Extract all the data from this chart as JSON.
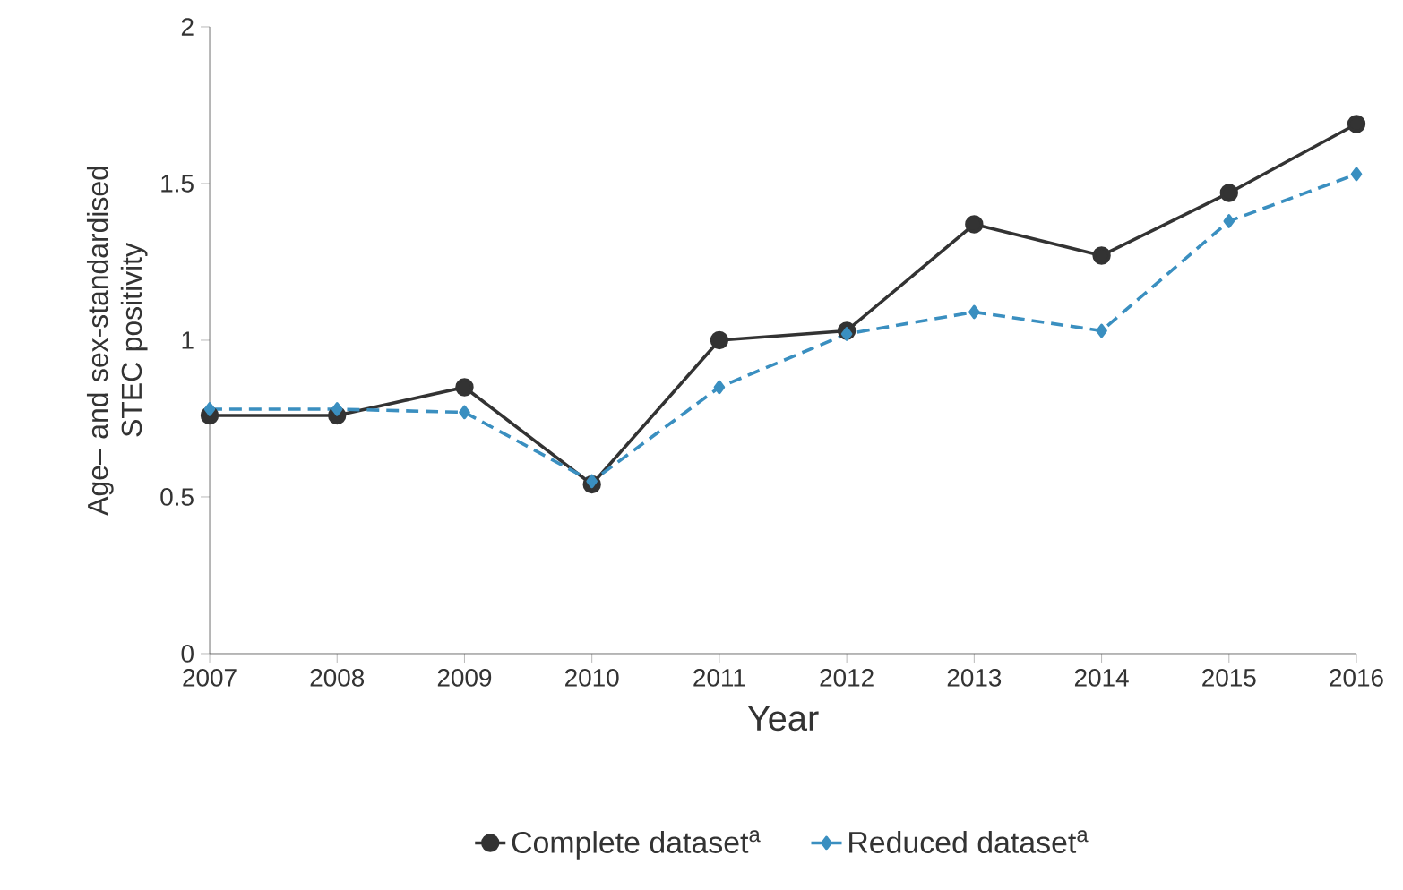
{
  "chart_data": {
    "type": "line",
    "xlabel": "Year",
    "ylabel": "Age– and sex-standardised STEC positivity",
    "x": [
      2007,
      2008,
      2009,
      2010,
      2011,
      2012,
      2013,
      2014,
      2015,
      2016
    ],
    "series": [
      {
        "name": "Complete dataset$^{a}$",
        "color": "#333333",
        "marker": "circle",
        "line_style": "solid",
        "values": [
          0.76,
          0.76,
          0.85,
          0.54,
          1.0,
          1.03,
          1.37,
          1.27,
          1.47,
          1.69
        ]
      },
      {
        "name": "Reduced dataset$^{a}$",
        "color": "#3a8fc0",
        "marker": "diamond",
        "line_style": "dashed",
        "values": [
          0.78,
          0.78,
          0.77,
          0.55,
          0.85,
          1.02,
          1.09,
          1.03,
          1.38,
          1.53
        ]
      }
    ],
    "xlim": [
      2007,
      2016
    ],
    "xticks": [
      2007,
      2008,
      2009,
      2010,
      2011,
      2012,
      2013,
      2014,
      2015,
      2016
    ],
    "ylim": [
      0,
      2
    ],
    "yticks": [
      0,
      0.5,
      1,
      1.5,
      2
    ],
    "grid": false,
    "legend": "bottom"
  }
}
